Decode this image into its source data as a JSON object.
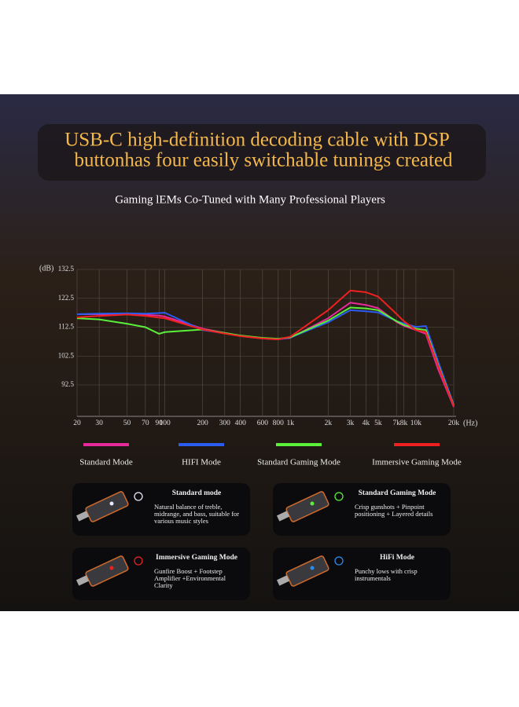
{
  "header": {
    "title_lines": [
      "USB-C high-definition decoding cable with DSP",
      "buttonhas four easily switchable tunings created"
    ],
    "subtitle": "Gaming lEMs Co-Tuned with Many Professional Players"
  },
  "chart_data": {
    "type": "line",
    "y_label": "(dB)",
    "x_label": "(Hz)",
    "log_x": true,
    "grid": true,
    "x": [
      20,
      30,
      50,
      70,
      90,
      100,
      200,
      300,
      400,
      600,
      800,
      1000,
      2000,
      3000,
      4000,
      5000,
      7000,
      8000,
      10000,
      12000,
      15000,
      20000
    ],
    "series": [
      {
        "name": "Standard Mode",
        "color": "#e8299a",
        "values": [
          117,
          117,
          117,
          116.8,
          116.5,
          116.2,
          112,
          110.5,
          109.4,
          108.6,
          108.3,
          108.8,
          115.6,
          121,
          120.2,
          119.1,
          114.3,
          113,
          111.5,
          110.2,
          98,
          84.9
        ]
      },
      {
        "name": "HIFI Mode",
        "color": "#2a5cf0",
        "values": [
          117,
          117.2,
          117.3,
          117.2,
          117.4,
          117.5,
          111.5,
          110.4,
          109.5,
          108.7,
          108.4,
          108.9,
          114.2,
          118.4,
          118,
          117.6,
          114.6,
          113.8,
          112.6,
          112.9,
          100.7,
          85.7
        ]
      },
      {
        "name": "Standard Gaming Mode",
        "color": "#5af03a",
        "values": [
          115.6,
          115.2,
          113.7,
          112.5,
          110.2,
          110.8,
          111.7,
          110.5,
          109.6,
          108.8,
          108.5,
          109,
          114.8,
          119.3,
          119,
          118.4,
          114.6,
          113.3,
          112,
          111.5,
          99.5,
          85.4
        ]
      },
      {
        "name": "Immersive Gaming Mode",
        "color": "#ee2020",
        "values": [
          115.9,
          116.4,
          116.9,
          116.4,
          115.8,
          115.6,
          111.7,
          110.3,
          109.4,
          108.6,
          108.3,
          109.2,
          118.4,
          125.2,
          124.6,
          123.1,
          117.1,
          114.6,
          111.5,
          110.8,
          99.2,
          85.2
        ]
      }
    ],
    "xlim": [
      20,
      20000
    ],
    "ylim": [
      82.5,
      132.5
    ],
    "xticks": [
      20,
      30,
      50,
      70,
      90,
      100,
      200,
      300,
      400,
      600,
      800,
      {
        "value": 1000,
        "label": "1k"
      },
      {
        "value": 2000,
        "label": "2k"
      },
      {
        "value": 3000,
        "label": "3k"
      },
      {
        "value": 4000,
        "label": "4k"
      },
      {
        "value": 5000,
        "label": "5k"
      },
      {
        "value": 7000,
        "label": "7k"
      },
      {
        "value": 8000,
        "label": "8k"
      },
      {
        "value": 10000,
        "label": "10k"
      },
      {
        "value": 20000,
        "label": "20k"
      }
    ],
    "yticks": [
      92.5,
      102.5,
      112.5,
      122.5,
      132.5
    ]
  },
  "modes": [
    {
      "title": "Standard mode",
      "description": "Natural balance of treble, midrange, and bass, suitable for various music styles"
    },
    {
      "title": "Standard Gaming Mode",
      "description": "Crisp gunshots + Pinpoint positioning + Layered details"
    },
    {
      "title": "Immersive Gaming Mode",
      "description": "Gunfire Boost + Footstep Amplifier +Environmental Clarity"
    },
    {
      "title": "HiFi Mode",
      "description": "Punchy lows with crisp instrumentals"
    }
  ]
}
